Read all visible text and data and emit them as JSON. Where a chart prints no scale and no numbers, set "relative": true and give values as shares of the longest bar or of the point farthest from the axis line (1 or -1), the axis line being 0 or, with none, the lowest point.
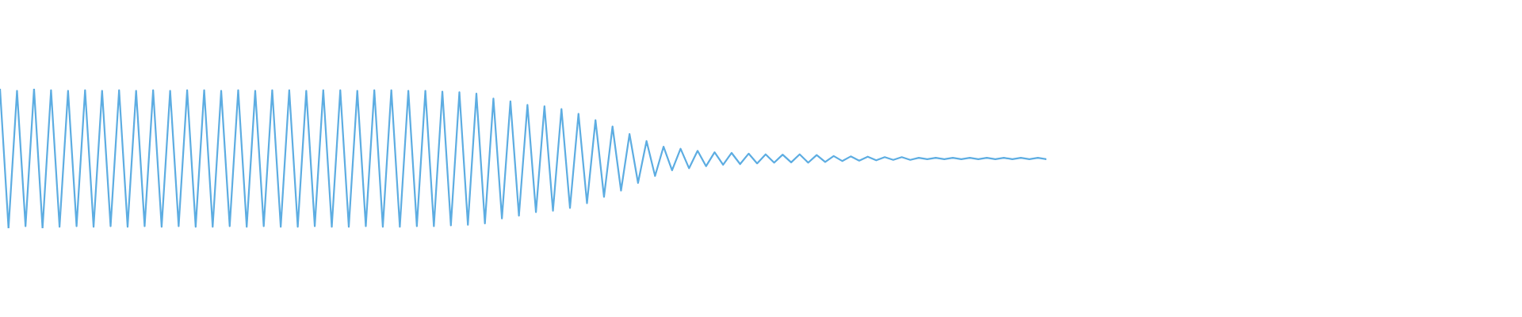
{
  "chart_data": {
    "type": "line",
    "relative": true,
    "categories": [
      null,
      null,
      null,
      null,
      null,
      null,
      null,
      null,
      null,
      null,
      null,
      null,
      null,
      null,
      null,
      null,
      null,
      null,
      null,
      null,
      null,
      null,
      null,
      null,
      null,
      null,
      null,
      null,
      null,
      null,
      null,
      null,
      null,
      null,
      null,
      null,
      null,
      null,
      null,
      null,
      null,
      null,
      null,
      null,
      null,
      null,
      null,
      null,
      null,
      null,
      null,
      null,
      null,
      null,
      null,
      null,
      null,
      null,
      null,
      null,
      null,
      null,
      null,
      null,
      null,
      null,
      null,
      null,
      null,
      null,
      null,
      null,
      null,
      null,
      null,
      null,
      null,
      null,
      null,
      null,
      null,
      null,
      null,
      null,
      null,
      null,
      null,
      null,
      null,
      null,
      null,
      null,
      null,
      null,
      null,
      null,
      null,
      null,
      null,
      null,
      null,
      null,
      null,
      null,
      null,
      null,
      null,
      null,
      null,
      null,
      null,
      null,
      null,
      null,
      null,
      null,
      null,
      null,
      null,
      null,
      null,
      null,
      null,
      null
    ],
    "color": "#5dade2",
    "values": [
      1,
      0,
      0.985,
      0.015,
      1,
      0,
      0.99,
      0.01,
      0.985,
      0.015,
      0.99,
      0.01,
      0.985,
      0.015,
      0.99,
      0.01,
      0.985,
      0.015,
      0.99,
      0.01,
      0.985,
      0.015,
      0.99,
      0.01,
      0.99,
      0.01,
      0.985,
      0.015,
      0.99,
      0.01,
      0.985,
      0.015,
      0.99,
      0.01,
      0.99,
      0.01,
      0.985,
      0.015,
      0.99,
      0.01,
      0.99,
      0.01,
      0.985,
      0.015,
      0.99,
      0.01,
      0.99,
      0.01,
      0.985,
      0.015,
      0.985,
      0.015,
      0.98,
      0.02,
      0.975,
      0.025,
      0.965,
      0.035,
      0.93,
      0.07,
      0.91,
      0.09,
      0.885,
      0.115,
      0.875,
      0.125,
      0.855,
      0.145,
      0.82,
      0.18,
      0.775,
      0.225,
      0.73,
      0.27,
      0.675,
      0.325,
      0.625,
      0.375,
      0.585,
      0.415,
      0.57,
      0.43,
      0.555,
      0.445,
      0.545,
      0.455,
      0.54,
      0.46,
      0.535,
      0.465,
      0.53,
      0.47,
      0.528,
      0.472,
      0.53,
      0.47,
      0.525,
      0.475,
      0.518,
      0.482,
      0.515,
      0.485,
      0.513,
      0.487,
      0.51,
      0.49,
      0.51,
      0.49,
      0.505,
      0.495,
      0.505,
      0.495,
      0.505,
      0.495,
      0.505,
      0.495,
      0.505,
      0.495,
      0.505,
      0.495,
      0.505,
      0.495,
      0.505,
      0.495
    ]
  }
}
